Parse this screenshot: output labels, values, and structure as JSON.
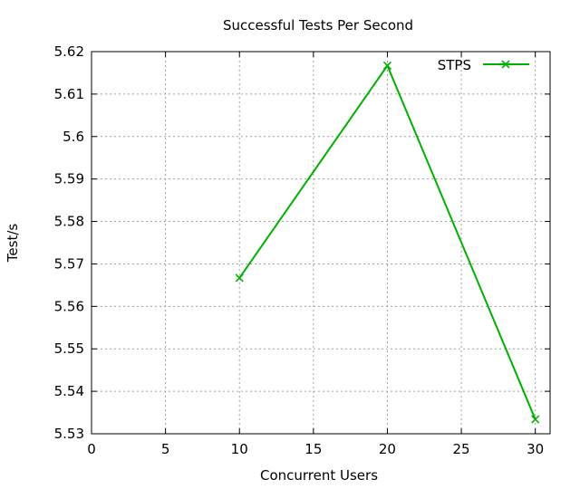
{
  "chart_data": {
    "type": "line",
    "title": "Successful Tests Per Second",
    "xlabel": "Concurrent Users",
    "ylabel": "Test/s",
    "xlim": [
      0,
      31
    ],
    "ylim": [
      5.53,
      5.62
    ],
    "xticks": [
      0,
      5,
      10,
      15,
      20,
      25,
      30
    ],
    "xtick_labels": [
      "0",
      "5",
      "10",
      "15",
      "20",
      "25",
      "30"
    ],
    "yticks": [
      5.53,
      5.54,
      5.55,
      5.56,
      5.57,
      5.58,
      5.59,
      5.6,
      5.61,
      5.62
    ],
    "ytick_labels": [
      "5.53",
      "5.54",
      "5.55",
      "5.56",
      "5.57",
      "5.58",
      "5.59",
      "5.6",
      "5.61",
      "5.62"
    ],
    "grid": true,
    "legend_position": "top-right",
    "series": [
      {
        "name": "STPS",
        "color": "#00b000",
        "marker": "x",
        "x": [
          10,
          20,
          30
        ],
        "y": [
          5.5667,
          5.6167,
          5.5334
        ]
      }
    ]
  }
}
